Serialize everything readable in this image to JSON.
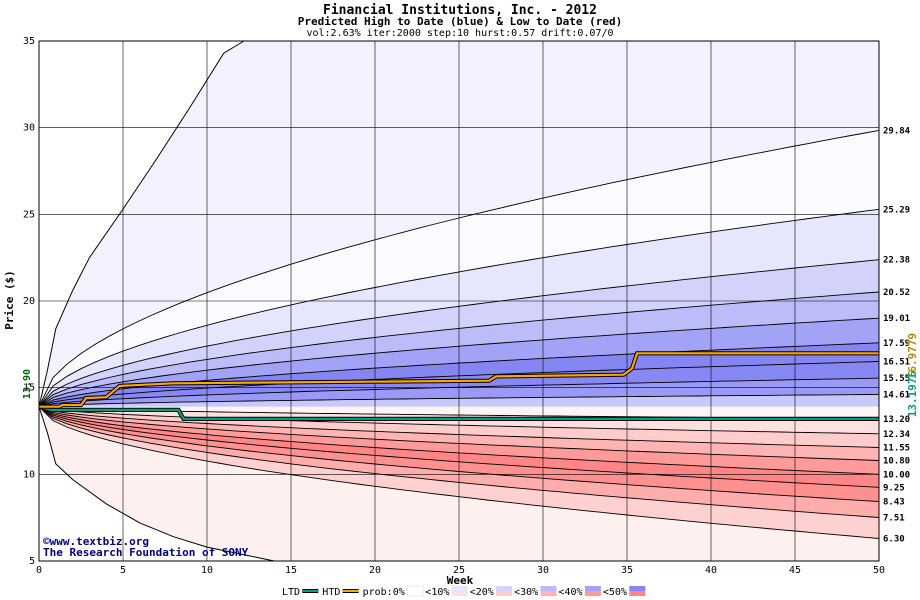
{
  "header": {
    "title": "Financial Institutions, Inc. - 2012",
    "subtitle": "Predicted High to Date (blue) &  Low to Date (red)",
    "params": "vol:2.63% iter:2000 step:10 hurst:0.57 drift:0.07/0"
  },
  "chart_data": {
    "type": "area",
    "xlabel": "Week",
    "ylabel": "Price ($)",
    "xlim": [
      0,
      50
    ],
    "ylim": [
      5,
      35
    ],
    "x_ticks": [
      0,
      5,
      10,
      15,
      20,
      25,
      30,
      35,
      40,
      45,
      50
    ],
    "y_ticks": [
      5,
      10,
      15,
      20,
      25,
      30,
      35
    ],
    "start_price": 13.9,
    "start_price_label": "13.90",
    "grid": true,
    "high_quantile_endpoints": [
      29.84,
      25.29,
      22.38,
      20.52,
      19.01,
      17.59,
      16.51,
      15.55,
      14.61
    ],
    "low_quantile_endpoints": [
      13.2,
      12.34,
      11.55,
      10.8,
      10.0,
      9.25,
      8.43,
      7.51,
      6.3
    ],
    "right_labels": [
      "29.84",
      "25.29",
      "22.38",
      "20.52",
      "19.01",
      "17.59",
      "16.51",
      "15.55",
      "14.61",
      "13.20",
      "12.34",
      "11.55",
      "10.80",
      "10.00",
      "9.25",
      "8.43",
      "7.51",
      "6.30"
    ],
    "htd_label": "16.9779",
    "ltd_label": "13.1976",
    "htd_series": {
      "name": "HTD",
      "color": "#ffa500",
      "points": [
        [
          0,
          13.9
        ],
        [
          1.2,
          13.9
        ],
        [
          1.4,
          14.0
        ],
        [
          2.5,
          14.0
        ],
        [
          2.8,
          14.4
        ],
        [
          4,
          14.45
        ],
        [
          4.8,
          15.1
        ],
        [
          8,
          15.25
        ],
        [
          26.8,
          15.4
        ],
        [
          27.2,
          15.65
        ],
        [
          34.8,
          15.75
        ],
        [
          35.3,
          16.1
        ],
        [
          35.6,
          16.98
        ],
        [
          50,
          16.98
        ]
      ]
    },
    "ltd_series": {
      "name": "LTD",
      "color": "#00a080",
      "points": [
        [
          0,
          13.9
        ],
        [
          0.7,
          13.72
        ],
        [
          8.3,
          13.72
        ],
        [
          8.6,
          13.2
        ],
        [
          50,
          13.2
        ]
      ]
    },
    "extreme_upper": [
      [
        0,
        13.9
      ],
      [
        0.5,
        16.0
      ],
      [
        1,
        18.4
      ],
      [
        2,
        20.6
      ],
      [
        3,
        22.5
      ],
      [
        5,
        25.3
      ],
      [
        7,
        28.2
      ],
      [
        9,
        31.2
      ],
      [
        11,
        34.3
      ],
      [
        12.2,
        35.0
      ]
    ],
    "extreme_lower": [
      [
        0,
        13.9
      ],
      [
        0.5,
        12.4
      ],
      [
        1,
        10.6
      ],
      [
        2,
        9.7
      ],
      [
        4,
        8.3
      ],
      [
        6,
        7.2
      ],
      [
        8,
        6.4
      ],
      [
        10,
        5.8
      ],
      [
        13,
        5.2
      ],
      [
        14,
        5.0
      ]
    ],
    "legend": {
      "items": [
        "LTD",
        "HTD",
        "prob:0%",
        "<10%",
        "<20%",
        "<30%",
        "<40%",
        "<50%"
      ]
    },
    "colors": {
      "grid": "#000000",
      "band_high": [
        "#fafaff",
        "#e6e6fc",
        "#d2d2fa",
        "#bcbcf8",
        "#a2a2f6",
        "#8686f2",
        "#8888f4",
        "#9a9af6",
        "#c8c8fa"
      ],
      "band_low": [
        "#fff4f4",
        "#ffe0e0",
        "#ffcccc",
        "#ffb4b4",
        "#ff9a9a",
        "#ff8686",
        "#ff9090",
        "#ffacac",
        "#ffd0d0"
      ],
      "extreme_area_high": "#f2f2fe",
      "extreme_area_low": "#fff0f0"
    }
  },
  "credits": {
    "site": "©www.textbiz.org",
    "org": "The Research Foundation of SONY"
  }
}
